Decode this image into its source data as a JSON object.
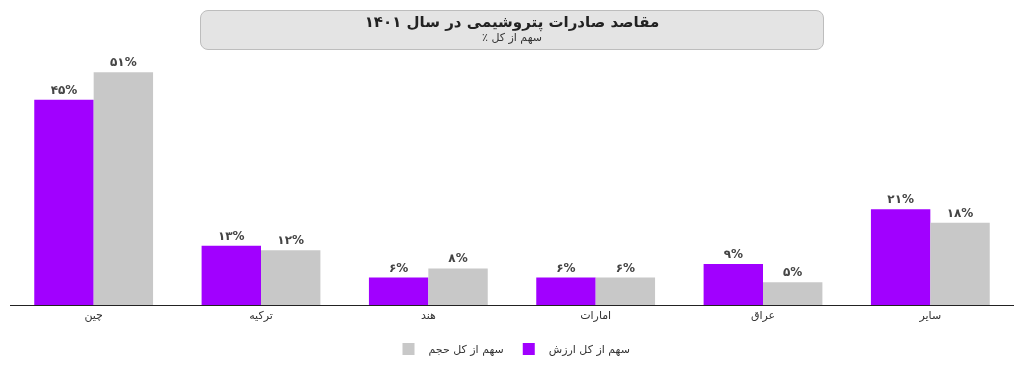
{
  "chart_data": {
    "type": "bar",
    "title": "مقاصد صادرات پتروشیمی در سال ۱۴۰۱",
    "subtitle": "سهم از کل ٪",
    "categories": [
      "چین",
      "ترکیه",
      "هند",
      "امارات",
      "عراق",
      "سایر"
    ],
    "series": [
      {
        "name": "سهم از کل ارزش",
        "color": "#a100ff",
        "values": [
          45,
          13,
          6,
          6,
          9,
          21
        ],
        "value_labels": [
          "۴۵%",
          "۱۳%",
          "۶%",
          "۶%",
          "۹%",
          "۲۱%"
        ]
      },
      {
        "name": "سهم از کل حجم",
        "color": "#c8c8c8",
        "values": [
          51,
          12,
          8,
          6,
          5,
          18
        ],
        "value_labels": [
          "۵۱%",
          "۱۲%",
          "۸%",
          "۶%",
          "۵%",
          "۱۸%"
        ]
      }
    ],
    "grid": false,
    "legend": "bottom"
  }
}
